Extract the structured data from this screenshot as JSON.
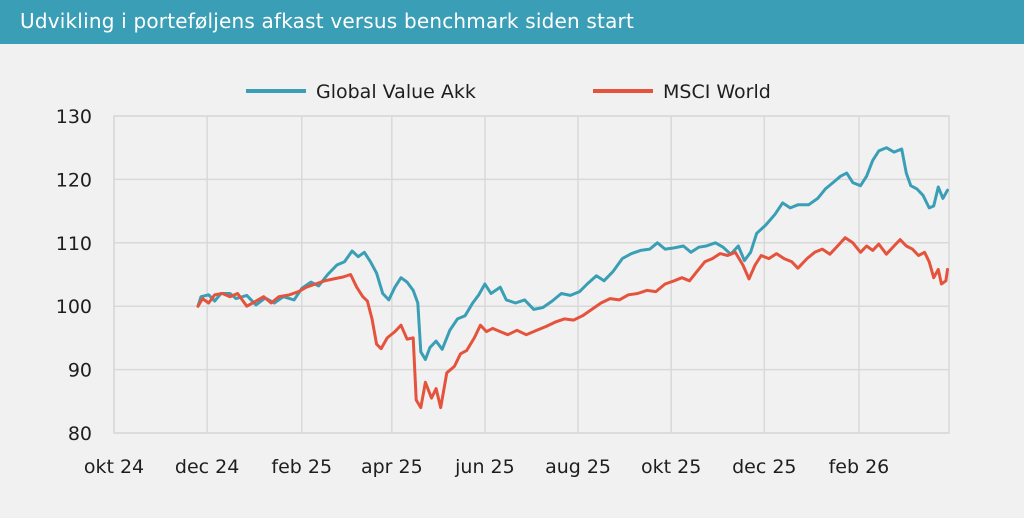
{
  "header": {
    "title": "Udvikling i porteføljens afkast versus benchmark siden start"
  },
  "colors": {
    "header_bg": "#3a9fb6",
    "global": "#3a9fb6",
    "msci": "#e5533d",
    "grid": "#d9d9d9"
  },
  "chart_data": {
    "type": "line",
    "title": "",
    "xlabel": "",
    "ylabel": "",
    "ylim": [
      80,
      130
    ],
    "yticks": [
      80,
      90,
      100,
      110,
      120,
      130
    ],
    "xticks": [
      "okt 24",
      "dec 24",
      "feb 25",
      "apr 25",
      "jun 25",
      "aug 25",
      "okt 25",
      "dec 25",
      "feb 26"
    ],
    "xrange": [
      "2024-10-01",
      "2026-04-01"
    ],
    "grid": true,
    "legend_position": "top",
    "series": [
      {
        "name": "Global Value Akk",
        "color": "#3a9fb6",
        "points": [
          [
            "2024-11-25",
            100.0
          ],
          [
            "2024-11-27",
            101.5
          ],
          [
            "2024-12-02",
            101.8
          ],
          [
            "2024-12-06",
            100.8
          ],
          [
            "2024-12-10",
            102.0
          ],
          [
            "2024-12-16",
            102.0
          ],
          [
            "2024-12-20",
            101.2
          ],
          [
            "2024-12-27",
            101.7
          ],
          [
            "2025-01-02",
            100.2
          ],
          [
            "2025-01-08",
            101.3
          ],
          [
            "2025-01-14",
            100.5
          ],
          [
            "2025-01-20",
            101.5
          ],
          [
            "2025-01-27",
            101.0
          ],
          [
            "2025-02-01",
            102.8
          ],
          [
            "2025-02-07",
            103.8
          ],
          [
            "2025-02-12",
            103.2
          ],
          [
            "2025-02-18",
            105.0
          ],
          [
            "2025-02-24",
            106.5
          ],
          [
            "2025-03-01",
            107.0
          ],
          [
            "2025-03-06",
            108.7
          ],
          [
            "2025-03-10",
            107.8
          ],
          [
            "2025-03-14",
            108.5
          ],
          [
            "2025-03-18",
            107.0
          ],
          [
            "2025-03-22",
            105.2
          ],
          [
            "2025-03-26",
            102.0
          ],
          [
            "2025-03-30",
            101.0
          ],
          [
            "2025-04-03",
            103.0
          ],
          [
            "2025-04-07",
            104.5
          ],
          [
            "2025-04-11",
            103.8
          ],
          [
            "2025-04-15",
            102.5
          ],
          [
            "2025-04-18",
            100.5
          ],
          [
            "2025-04-20",
            92.8
          ],
          [
            "2025-04-23",
            91.6
          ],
          [
            "2025-04-26",
            93.5
          ],
          [
            "2025-04-30",
            94.5
          ],
          [
            "2025-05-04",
            93.2
          ],
          [
            "2025-05-09",
            96.2
          ],
          [
            "2025-05-14",
            98.0
          ],
          [
            "2025-05-19",
            98.5
          ],
          [
            "2025-05-24",
            100.5
          ],
          [
            "2025-05-28",
            101.8
          ],
          [
            "2025-06-01",
            103.5
          ],
          [
            "2025-06-05",
            102.0
          ],
          [
            "2025-06-11",
            103.0
          ],
          [
            "2025-06-15",
            101.0
          ],
          [
            "2025-06-21",
            100.5
          ],
          [
            "2025-06-27",
            101.0
          ],
          [
            "2025-07-03",
            99.5
          ],
          [
            "2025-07-09",
            99.8
          ],
          [
            "2025-07-15",
            100.8
          ],
          [
            "2025-07-21",
            102.0
          ],
          [
            "2025-07-27",
            101.7
          ],
          [
            "2025-08-02",
            102.3
          ],
          [
            "2025-08-07",
            103.5
          ],
          [
            "2025-08-13",
            104.8
          ],
          [
            "2025-08-18",
            104.0
          ],
          [
            "2025-08-24",
            105.5
          ],
          [
            "2025-08-30",
            107.5
          ],
          [
            "2025-09-05",
            108.3
          ],
          [
            "2025-09-11",
            108.8
          ],
          [
            "2025-09-17",
            109.0
          ],
          [
            "2025-09-22",
            110.0
          ],
          [
            "2025-09-27",
            109.0
          ],
          [
            "2025-10-03",
            109.2
          ],
          [
            "2025-10-09",
            109.5
          ],
          [
            "2025-10-14",
            108.5
          ],
          [
            "2025-10-19",
            109.3
          ],
          [
            "2025-10-24",
            109.5
          ],
          [
            "2025-10-30",
            110.0
          ],
          [
            "2025-11-04",
            109.3
          ],
          [
            "2025-11-09",
            108.2
          ],
          [
            "2025-11-14",
            109.5
          ],
          [
            "2025-11-18",
            107.2
          ],
          [
            "2025-11-22",
            108.5
          ],
          [
            "2025-11-26",
            111.5
          ],
          [
            "2025-12-02",
            112.8
          ],
          [
            "2025-12-08",
            114.5
          ],
          [
            "2025-12-13",
            116.3
          ],
          [
            "2025-12-18",
            115.5
          ],
          [
            "2025-12-23",
            116.0
          ],
          [
            "2025-12-30",
            116.0
          ],
          [
            "2026-01-05",
            117.0
          ],
          [
            "2026-01-10",
            118.5
          ],
          [
            "2026-01-15",
            119.5
          ],
          [
            "2026-01-20",
            120.5
          ],
          [
            "2026-01-24",
            121.0
          ],
          [
            "2026-01-28",
            119.5
          ],
          [
            "2026-02-02",
            119.0
          ],
          [
            "2026-02-06",
            120.5
          ],
          [
            "2026-02-10",
            123.0
          ],
          [
            "2026-02-14",
            124.5
          ],
          [
            "2026-02-19",
            125.0
          ],
          [
            "2026-02-24",
            124.3
          ],
          [
            "2026-03-01",
            124.8
          ],
          [
            "2026-03-04",
            121.0
          ],
          [
            "2026-03-07",
            119.0
          ],
          [
            "2026-03-11",
            118.5
          ],
          [
            "2026-03-15",
            117.5
          ],
          [
            "2026-03-19",
            115.5
          ],
          [
            "2026-03-22",
            115.8
          ],
          [
            "2026-03-25",
            118.8
          ],
          [
            "2026-03-28",
            117.0
          ],
          [
            "2026-03-31",
            118.3
          ]
        ]
      },
      {
        "name": "MSCI World",
        "color": "#e5533d",
        "points": [
          [
            "2024-11-25",
            100.0
          ],
          [
            "2024-11-28",
            101.2
          ],
          [
            "2024-12-02",
            100.5
          ],
          [
            "2024-12-06",
            101.8
          ],
          [
            "2024-12-11",
            102.0
          ],
          [
            "2024-12-16",
            101.5
          ],
          [
            "2024-12-21",
            102.0
          ],
          [
            "2024-12-27",
            100.0
          ],
          [
            "2025-01-02",
            100.8
          ],
          [
            "2025-01-07",
            101.5
          ],
          [
            "2025-01-12",
            100.5
          ],
          [
            "2025-01-17",
            101.5
          ],
          [
            "2025-01-24",
            101.8
          ],
          [
            "2025-01-30",
            102.3
          ],
          [
            "2025-02-04",
            103.0
          ],
          [
            "2025-02-10",
            103.5
          ],
          [
            "2025-02-16",
            104.0
          ],
          [
            "2025-02-22",
            104.3
          ],
          [
            "2025-02-28",
            104.6
          ],
          [
            "2025-03-05",
            105.0
          ],
          [
            "2025-03-09",
            103.0
          ],
          [
            "2025-03-13",
            101.5
          ],
          [
            "2025-03-16",
            100.8
          ],
          [
            "2025-03-19",
            98.0
          ],
          [
            "2025-03-22",
            94.0
          ],
          [
            "2025-03-25",
            93.3
          ],
          [
            "2025-03-29",
            95.0
          ],
          [
            "2025-04-03",
            96.0
          ],
          [
            "2025-04-07",
            97.0
          ],
          [
            "2025-04-11",
            94.8
          ],
          [
            "2025-04-15",
            95.0
          ],
          [
            "2025-04-17",
            85.2
          ],
          [
            "2025-04-20",
            84.0
          ],
          [
            "2025-04-23",
            88.0
          ],
          [
            "2025-04-27",
            85.5
          ],
          [
            "2025-04-30",
            87.0
          ],
          [
            "2025-05-03",
            84.0
          ],
          [
            "2025-05-07",
            89.5
          ],
          [
            "2025-05-12",
            90.5
          ],
          [
            "2025-05-16",
            92.5
          ],
          [
            "2025-05-20",
            93.0
          ],
          [
            "2025-05-25",
            95.0
          ],
          [
            "2025-05-29",
            97.0
          ],
          [
            "2025-06-02",
            96.0
          ],
          [
            "2025-06-06",
            96.5
          ],
          [
            "2025-06-11",
            96.0
          ],
          [
            "2025-06-16",
            95.5
          ],
          [
            "2025-06-22",
            96.2
          ],
          [
            "2025-06-28",
            95.5
          ],
          [
            "2025-07-05",
            96.2
          ],
          [
            "2025-07-11",
            96.8
          ],
          [
            "2025-07-17",
            97.5
          ],
          [
            "2025-07-23",
            98.0
          ],
          [
            "2025-07-29",
            97.8
          ],
          [
            "2025-08-04",
            98.5
          ],
          [
            "2025-08-10",
            99.5
          ],
          [
            "2025-08-16",
            100.5
          ],
          [
            "2025-08-22",
            101.2
          ],
          [
            "2025-08-28",
            101.0
          ],
          [
            "2025-09-03",
            101.8
          ],
          [
            "2025-09-09",
            102.0
          ],
          [
            "2025-09-15",
            102.5
          ],
          [
            "2025-09-21",
            102.3
          ],
          [
            "2025-09-27",
            103.5
          ],
          [
            "2025-10-03",
            104.0
          ],
          [
            "2025-10-08",
            104.5
          ],
          [
            "2025-10-13",
            104.0
          ],
          [
            "2025-10-18",
            105.5
          ],
          [
            "2025-10-23",
            107.0
          ],
          [
            "2025-10-28",
            107.5
          ],
          [
            "2025-11-02",
            108.3
          ],
          [
            "2025-11-07",
            108.0
          ],
          [
            "2025-11-12",
            108.5
          ],
          [
            "2025-11-17",
            106.5
          ],
          [
            "2025-11-21",
            104.3
          ],
          [
            "2025-11-25",
            106.5
          ],
          [
            "2025-11-29",
            108.0
          ],
          [
            "2025-12-04",
            107.5
          ],
          [
            "2025-12-09",
            108.3
          ],
          [
            "2025-12-14",
            107.5
          ],
          [
            "2025-12-19",
            107.0
          ],
          [
            "2025-12-23",
            106.0
          ],
          [
            "2025-12-29",
            107.5
          ],
          [
            "2026-01-03",
            108.5
          ],
          [
            "2026-01-08",
            109.0
          ],
          [
            "2026-01-13",
            108.2
          ],
          [
            "2026-01-18",
            109.5
          ],
          [
            "2026-01-23",
            110.8
          ],
          [
            "2026-01-28",
            110.0
          ],
          [
            "2026-02-02",
            108.5
          ],
          [
            "2026-02-06",
            109.5
          ],
          [
            "2026-02-10",
            108.8
          ],
          [
            "2026-02-14",
            109.8
          ],
          [
            "2026-02-19",
            108.2
          ],
          [
            "2026-02-24",
            109.5
          ],
          [
            "2026-02-28",
            110.5
          ],
          [
            "2026-03-04",
            109.5
          ],
          [
            "2026-03-08",
            109.0
          ],
          [
            "2026-03-12",
            108.0
          ],
          [
            "2026-03-16",
            108.5
          ],
          [
            "2026-03-19",
            107.0
          ],
          [
            "2026-03-22",
            104.5
          ],
          [
            "2026-03-25",
            105.8
          ],
          [
            "2026-03-27",
            103.5
          ],
          [
            "2026-03-30",
            104.0
          ],
          [
            "2026-03-31",
            105.8
          ]
        ]
      }
    ]
  }
}
